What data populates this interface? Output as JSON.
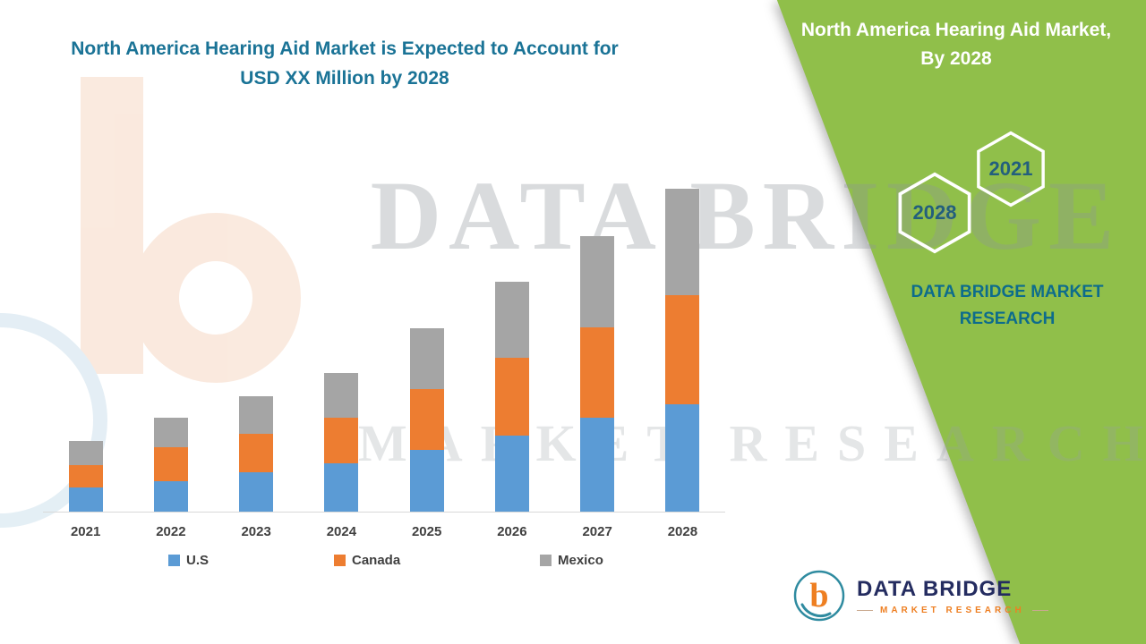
{
  "title": {
    "line1": "North America Hearing Aid Market is Expected to Account for",
    "line2": "USD XX Million by 2028"
  },
  "side_panel": {
    "heading_line1": "North America Hearing Aid Market,",
    "heading_line2": "By 2028",
    "hexagons": [
      {
        "label": "2028"
      },
      {
        "label": "2021"
      }
    ],
    "brand_line1": "DATA BRIDGE MARKET",
    "brand_line2": "RESEARCH"
  },
  "watermark": {
    "line1": "DATA BRIDGE",
    "line2": "MARKET RESEARCH"
  },
  "logo": {
    "monogram": "b",
    "name": "DATA BRIDGE",
    "subtitle": "MARKET RESEARCH"
  },
  "colors": {
    "panel_green": "#90bf4a",
    "title_teal": "#1a7396",
    "brand_teal": "#0d6c8c",
    "logo_navy": "#242c60",
    "logo_orange": "#ee7f22",
    "axis_gray": "#d9d9d9"
  },
  "chart_data": {
    "type": "bar",
    "stacked": true,
    "title": "North America Hearing Aid Market is Expected to Account for USD XX Million by 2028",
    "xlabel": "",
    "ylabel": "",
    "value_note": "absolute values not disclosed (USD XX Million); values below are estimated relative units read from bar heights",
    "categories": [
      "2021",
      "2022",
      "2023",
      "2024",
      "2025",
      "2026",
      "2027",
      "2028"
    ],
    "series": [
      {
        "name": "U.S",
        "color": "#5b9bd5",
        "values": [
          27,
          34,
          44,
          54,
          69,
          85,
          105,
          120
        ]
      },
      {
        "name": "Canada",
        "color": "#ed7d31",
        "values": [
          25,
          38,
          43,
          51,
          68,
          87,
          101,
          122
        ]
      },
      {
        "name": "Mexico",
        "color": "#a5a5a5",
        "values": [
          27,
          33,
          42,
          50,
          68,
          85,
          102,
          119
        ]
      }
    ],
    "totals": [
      79,
      105,
      129,
      155,
      205,
      257,
      308,
      361
    ],
    "ylim": [
      0,
      380
    ],
    "grid": false,
    "legend_position": "bottom",
    "y_axis_visible": false
  }
}
